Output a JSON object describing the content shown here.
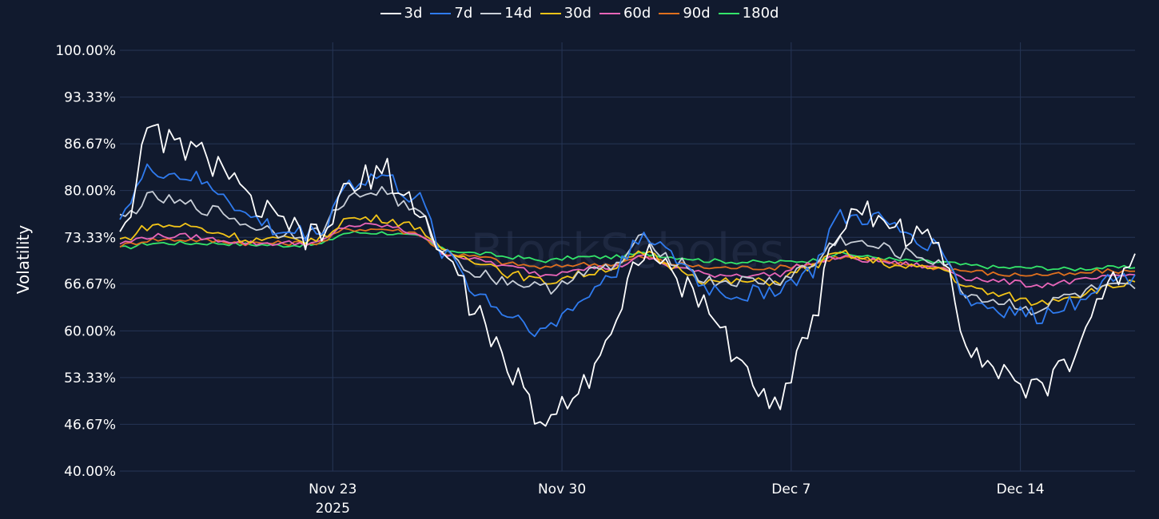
{
  "chart_data": {
    "type": "line",
    "ylabel": "Volatility",
    "watermark": "BlockScholes",
    "ylim": [
      40,
      100
    ],
    "y_ticks": [
      "100.00%",
      "93.33%",
      "86.67%",
      "80.00%",
      "73.33%",
      "66.67%",
      "60.00%",
      "53.33%",
      "46.67%",
      "40.00%"
    ],
    "y_tick_values": [
      100,
      93.33,
      86.67,
      80,
      73.33,
      66.67,
      60,
      53.33,
      46.67,
      40
    ],
    "x_range": [
      "2025-11-16T12:00",
      "2025-12-17T12:00"
    ],
    "x_ticks": [
      {
        "date": "2025-11-23",
        "label": "Nov 23",
        "sublabel": "2025"
      },
      {
        "date": "2025-11-30",
        "label": "Nov 30",
        "sublabel": ""
      },
      {
        "date": "2025-12-07",
        "label": "Dec 7",
        "sublabel": ""
      },
      {
        "date": "2025-12-14",
        "label": "Dec 14",
        "sublabel": ""
      }
    ],
    "x": [
      "2025-11-16",
      "2025-11-17",
      "2025-11-18",
      "2025-11-19",
      "2025-11-20",
      "2025-11-21",
      "2025-11-22",
      "2025-11-23",
      "2025-11-24",
      "2025-11-25",
      "2025-11-26",
      "2025-11-27",
      "2025-11-28",
      "2025-11-29",
      "2025-11-30",
      "2025-12-01",
      "2025-12-02",
      "2025-12-03",
      "2025-12-04",
      "2025-12-05",
      "2025-12-06",
      "2025-12-07",
      "2025-12-08",
      "2025-12-09",
      "2025-12-10",
      "2025-12-11",
      "2025-12-12",
      "2025-12-13",
      "2025-12-14",
      "2025-12-15",
      "2025-12-16",
      "2025-12-17"
    ],
    "series": [
      {
        "name": "3d",
        "color": "#ffffff",
        "values": [
          75,
          88,
          86,
          84,
          78,
          75,
          73,
          80,
          83,
          78,
          70,
          62,
          53,
          47,
          52,
          60,
          72,
          67,
          63,
          55,
          49,
          60,
          75,
          77,
          74,
          72,
          58,
          54,
          51,
          56,
          65,
          71
        ]
      },
      {
        "name": "7d",
        "color": "#2f7bef",
        "values": [
          77,
          83,
          82,
          80,
          76,
          74,
          74,
          81,
          82,
          79,
          71,
          65,
          62,
          60,
          64,
          68,
          74,
          70,
          66,
          65,
          66,
          68,
          76,
          76,
          74,
          72,
          64,
          63,
          62,
          64,
          67,
          68
        ]
      },
      {
        "name": "14d",
        "color": "#c9cfd8",
        "values": [
          76,
          79,
          78,
          77,
          75,
          74,
          74,
          79,
          80,
          77,
          71,
          68,
          67,
          66,
          68,
          69,
          73,
          70,
          67,
          67,
          67,
          69,
          73,
          72,
          71,
          70,
          65,
          64,
          63,
          65,
          66,
          66
        ]
      },
      {
        "name": "30d",
        "color": "#f2c418",
        "values": [
          73,
          75,
          75,
          74,
          73,
          73,
          73,
          76,
          76,
          75,
          71,
          70,
          68,
          67,
          68,
          69,
          71,
          69,
          67,
          67,
          67,
          69,
          71,
          70,
          69,
          69,
          66,
          65,
          64,
          65,
          66,
          67
        ]
      },
      {
        "name": "60d",
        "color": "#e865b8",
        "values": [
          72.5,
          73.5,
          73.5,
          73,
          72.5,
          72.5,
          72.5,
          75,
          75,
          74,
          71,
          70,
          69,
          68,
          69,
          69,
          70.5,
          69,
          68,
          68,
          68,
          69.5,
          70.5,
          70,
          69.5,
          69,
          67.5,
          67,
          66.5,
          67,
          67.5,
          68
        ]
      },
      {
        "name": "90d",
        "color": "#e0701e",
        "values": [
          72.2,
          73,
          73,
          72.8,
          72.5,
          72.5,
          72.5,
          74.5,
          74.5,
          74,
          71,
          70.5,
          69.5,
          69,
          69.5,
          69.5,
          70.5,
          69.5,
          69,
          69,
          69,
          69.5,
          70.5,
          70,
          69.5,
          69,
          68.5,
          68,
          68,
          68,
          68.5,
          68.5
        ]
      },
      {
        "name": "180d",
        "color": "#34e56a",
        "values": [
          71.8,
          72.5,
          72.5,
          72.5,
          72.3,
          72.2,
          72.3,
          74,
          74,
          73.5,
          71.5,
          71,
          70.5,
          70,
          70.5,
          70.5,
          71,
          70.5,
          70,
          69.8,
          69.8,
          70,
          71,
          70.5,
          70,
          69.8,
          69.3,
          69,
          69,
          68.8,
          69,
          69
        ]
      }
    ]
  }
}
